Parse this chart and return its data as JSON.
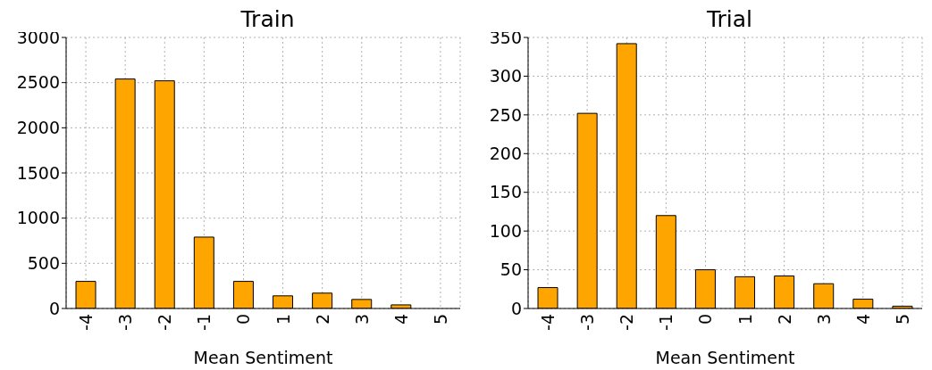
{
  "chart_data": [
    {
      "type": "bar",
      "title": "Train",
      "xlabel": "Mean Sentiment",
      "categories": [
        "-4",
        "-3",
        "-2",
        "-1",
        "0",
        "1",
        "2",
        "3",
        "4",
        "5"
      ],
      "values": [
        300,
        2540,
        2520,
        790,
        300,
        140,
        170,
        100,
        40,
        0
      ],
      "color": "#ffa500",
      "ylim": [
        0,
        3000
      ],
      "yticks": [
        0,
        500,
        1000,
        1500,
        2000,
        2500,
        3000
      ],
      "grid": true
    },
    {
      "type": "bar",
      "title": "Trial",
      "xlabel": "Mean Sentiment",
      "categories": [
        "-4",
        "-3",
        "-2",
        "-1",
        "0",
        "1",
        "2",
        "3",
        "4",
        "5"
      ],
      "values": [
        27,
        252,
        342,
        120,
        50,
        41,
        42,
        32,
        12,
        3
      ],
      "color": "#ffa500",
      "ylim": [
        0,
        350
      ],
      "yticks": [
        0,
        50,
        100,
        150,
        200,
        250,
        300,
        350
      ],
      "grid": true
    }
  ]
}
